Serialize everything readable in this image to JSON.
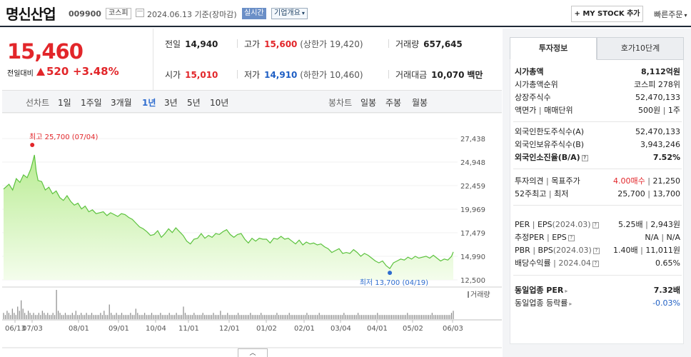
{
  "header": {
    "stock_name": "명신산업",
    "stock_code": "009900",
    "market": "코스피",
    "date": "2024.06.13",
    "date_basis": "기준(장마감)",
    "realtime": "실시간",
    "company_overview": "기업개요",
    "my_stock_button": "+ MY STOCK 추가",
    "quick_order": "빠른주문"
  },
  "price": {
    "current": "15,460",
    "change_label": "전일대비",
    "change": "520",
    "change_pct": "+3.48%",
    "direction": "up"
  },
  "stats": {
    "prev_close": {
      "label": "전일",
      "value": "14,940"
    },
    "high": {
      "label": "고가",
      "value": "15,600",
      "sub": "(상한가 19,420)"
    },
    "volume": {
      "label": "거래량",
      "value": "657,645"
    },
    "open": {
      "label": "시가",
      "value": "15,010"
    },
    "low": {
      "label": "저가",
      "value": "14,910",
      "sub": "(하한가 10,460)"
    },
    "amount": {
      "label": "거래대금",
      "value": "10,070",
      "unit": "백만"
    }
  },
  "period_bar": {
    "line_label": "선차트",
    "periods": [
      "1일",
      "1주일",
      "3개월",
      "1년",
      "3년",
      "5년",
      "10년"
    ],
    "active_period": "1년",
    "candle_label": "봉차트",
    "candle_periods": [
      "일봉",
      "주봉",
      "월봉"
    ]
  },
  "chart_data": {
    "type": "area",
    "y_ticks": [
      "27,438",
      "24,948",
      "22,459",
      "19,969",
      "17,479",
      "14,990",
      "12,500"
    ],
    "ylim": [
      12500,
      27438
    ],
    "x_ticks": [
      "06/13",
      "07/03",
      "08/01",
      "09/01",
      "10/04",
      "11/01",
      "12/01",
      "01/02",
      "02/01",
      "03/04",
      "04/01",
      "05/02",
      "06/03"
    ],
    "max_label": "최고 25,700 (07/04)",
    "min_label": "최저 13,700 (04/19)",
    "max": {
      "date": "07/04",
      "value": 25700
    },
    "min": {
      "date": "04/19",
      "value": 13700
    },
    "volume_label": "거래량",
    "price_series": [
      [
        0,
        22100
      ],
      [
        3,
        22600
      ],
      [
        5,
        22000
      ],
      [
        7,
        23200
      ],
      [
        9,
        22800
      ],
      [
        11,
        23600
      ],
      [
        13,
        23300
      ],
      [
        15,
        24200
      ],
      [
        16,
        24900
      ],
      [
        17,
        25700
      ],
      [
        18,
        24000
      ],
      [
        19,
        23000
      ],
      [
        21,
        22900
      ],
      [
        23,
        22000
      ],
      [
        25,
        22300
      ],
      [
        27,
        21600
      ],
      [
        29,
        21900
      ],
      [
        31,
        21200
      ],
      [
        33,
        20900
      ],
      [
        35,
        21400
      ],
      [
        37,
        20800
      ],
      [
        39,
        20400
      ],
      [
        41,
        20600
      ],
      [
        43,
        20000
      ],
      [
        45,
        20300
      ],
      [
        47,
        19700
      ],
      [
        49,
        19900
      ],
      [
        51,
        19500
      ],
      [
        53,
        19600
      ],
      [
        55,
        19700
      ],
      [
        57,
        19300
      ],
      [
        59,
        19600
      ],
      [
        61,
        19400
      ],
      [
        63,
        19200
      ],
      [
        65,
        19500
      ],
      [
        67,
        19400
      ],
      [
        69,
        19100
      ],
      [
        71,
        18900
      ],
      [
        73,
        18500
      ],
      [
        75,
        18100
      ],
      [
        77,
        17900
      ],
      [
        79,
        17600
      ],
      [
        81,
        17200
      ],
      [
        83,
        17300
      ],
      [
        85,
        17700
      ],
      [
        87,
        17000
      ],
      [
        89,
        17400
      ],
      [
        91,
        17900
      ],
      [
        93,
        17500
      ],
      [
        95,
        18000
      ],
      [
        97,
        17600
      ],
      [
        99,
        17200
      ],
      [
        101,
        16600
      ],
      [
        103,
        16300
      ],
      [
        105,
        16800
      ],
      [
        107,
        16900
      ],
      [
        109,
        17400
      ],
      [
        111,
        16900
      ],
      [
        113,
        17200
      ],
      [
        115,
        17000
      ],
      [
        117,
        17400
      ],
      [
        119,
        17300
      ],
      [
        121,
        17600
      ],
      [
        123,
        17800
      ],
      [
        125,
        17300
      ],
      [
        127,
        17000
      ],
      [
        129,
        17300
      ],
      [
        131,
        17400
      ],
      [
        133,
        16800
      ],
      [
        135,
        16400
      ],
      [
        137,
        16900
      ],
      [
        139,
        16600
      ],
      [
        141,
        16900
      ],
      [
        143,
        16800
      ],
      [
        145,
        16800
      ],
      [
        147,
        16400
      ],
      [
        149,
        16900
      ],
      [
        151,
        16800
      ],
      [
        153,
        17100
      ],
      [
        155,
        16800
      ],
      [
        157,
        16900
      ],
      [
        159,
        16600
      ],
      [
        161,
        16300
      ],
      [
        163,
        16700
      ],
      [
        165,
        16200
      ],
      [
        167,
        16500
      ],
      [
        169,
        16300
      ],
      [
        171,
        16400
      ],
      [
        173,
        16200
      ],
      [
        175,
        16300
      ],
      [
        177,
        16000
      ],
      [
        179,
        15800
      ],
      [
        181,
        15400
      ],
      [
        183,
        15600
      ],
      [
        185,
        15800
      ],
      [
        187,
        15300
      ],
      [
        189,
        15400
      ],
      [
        191,
        15300
      ],
      [
        193,
        15700
      ],
      [
        195,
        15400
      ],
      [
        197,
        15000
      ],
      [
        199,
        15300
      ],
      [
        201,
        15100
      ],
      [
        203,
        14800
      ],
      [
        205,
        14500
      ],
      [
        207,
        14300
      ],
      [
        209,
        14500
      ],
      [
        211,
        14000
      ],
      [
        213,
        13700
      ],
      [
        215,
        14300
      ],
      [
        217,
        14500
      ],
      [
        219,
        14700
      ],
      [
        221,
        14600
      ],
      [
        223,
        14900
      ],
      [
        225,
        14700
      ],
      [
        227,
        15000
      ],
      [
        229,
        14800
      ],
      [
        231,
        14900
      ],
      [
        233,
        15000
      ],
      [
        235,
        14800
      ],
      [
        237,
        15100
      ],
      [
        239,
        14800
      ],
      [
        241,
        14500
      ],
      [
        243,
        14700
      ],
      [
        245,
        14600
      ],
      [
        247,
        14990
      ],
      [
        248,
        15460
      ]
    ],
    "volume_series": [
      3,
      2,
      4,
      3,
      2,
      5,
      3,
      2,
      6,
      4,
      9,
      5,
      3,
      2,
      4,
      3,
      2,
      3,
      2,
      2,
      3,
      2,
      4,
      3,
      2,
      3,
      2,
      2,
      3,
      2,
      14,
      4,
      3,
      2,
      2,
      3,
      2,
      2,
      2,
      3,
      2,
      4,
      2,
      2,
      3,
      2,
      2,
      3,
      2,
      2,
      3,
      2,
      2,
      2,
      2,
      3,
      2,
      4,
      2,
      2,
      7,
      3,
      2,
      2,
      3,
      2,
      2,
      3,
      2,
      2,
      2,
      2,
      3,
      2,
      2,
      5,
      3,
      2,
      2,
      2,
      3,
      2,
      2,
      2,
      3,
      2,
      2,
      2,
      2,
      3,
      2,
      2,
      2,
      2,
      3,
      2,
      2,
      2,
      3,
      2,
      2,
      2,
      6,
      3,
      2,
      2,
      2,
      2,
      3,
      2,
      2,
      2,
      2,
      3,
      2,
      2,
      2,
      2,
      2,
      3,
      2,
      2,
      2,
      4,
      2,
      2,
      2,
      3,
      2,
      2,
      2,
      2,
      2,
      3,
      2,
      2,
      2,
      2,
      2,
      2,
      3,
      2,
      2,
      2,
      2,
      2,
      3,
      2,
      2,
      2,
      2,
      2,
      2,
      2,
      2,
      3,
      2,
      2,
      2,
      2,
      2,
      2,
      3,
      2,
      2,
      2,
      2,
      2,
      2,
      2,
      2,
      2,
      3,
      2,
      2,
      2,
      2,
      2,
      2,
      3,
      2,
      2,
      2,
      2,
      2,
      2,
      2,
      2,
      2,
      2,
      2,
      2,
      2,
      3,
      2,
      2,
      2,
      2,
      2,
      2,
      2,
      3,
      2,
      2,
      2,
      2,
      2,
      2,
      2,
      2,
      2,
      2,
      3,
      2,
      2,
      2,
      2,
      2,
      2,
      2,
      2,
      2,
      2,
      2,
      2,
      2,
      2,
      2,
      2,
      3,
      2,
      2,
      2,
      2,
      2,
      2,
      2,
      2,
      2,
      2,
      2,
      2,
      2,
      3,
      2,
      2,
      2,
      2,
      2,
      2,
      2,
      2,
      2,
      2,
      3,
      4
    ]
  },
  "right_panel": {
    "tabs": [
      "투자정보",
      "호가10단계"
    ],
    "market_cap": {
      "label": "시가총액",
      "value": "8,112억원"
    },
    "market_cap_rank": {
      "label": "시가총액순위",
      "market": "코스피",
      "value": "278위"
    },
    "shares": {
      "label": "상장주식수",
      "value": "52,470,133"
    },
    "par": {
      "label": "액면가",
      "label2": "매매단위",
      "value": "500원",
      "value2": "1주"
    },
    "foreign_limit": {
      "label": "외국인한도주식수(A)",
      "value": "52,470,133"
    },
    "foreign_hold": {
      "label": "외국인보유주식수(B)",
      "value": "3,943,246"
    },
    "foreign_ratio": {
      "label": "외국인소진율(B/A)",
      "value": "7.52%"
    },
    "opinion": {
      "label": "투자의견",
      "label2": "목표주가",
      "value": "4.00매수",
      "value2": "21,250"
    },
    "w52": {
      "label": "52주최고",
      "label2": "최저",
      "value": "25,700",
      "value2": "13,700"
    },
    "per": {
      "label": "PER",
      "label2": "EPS",
      "period": "(2024.03)",
      "value": "5.25배",
      "value2": "2,943원"
    },
    "est_per": {
      "label": "추정PER",
      "label2": "EPS",
      "value": "N/A",
      "value2": "N/A"
    },
    "pbr": {
      "label": "PBR",
      "label2": "BPS",
      "period": "(2024.03)",
      "value": "1.40배",
      "value2": "11,011원"
    },
    "dividend": {
      "label": "배당수익률",
      "period": "2024.04",
      "value": "0.65%"
    },
    "industry_per": {
      "label": "동일업종 PER",
      "value": "7.32배"
    },
    "industry_change": {
      "label": "동일업종 등락률",
      "value": "-0.03%"
    }
  }
}
